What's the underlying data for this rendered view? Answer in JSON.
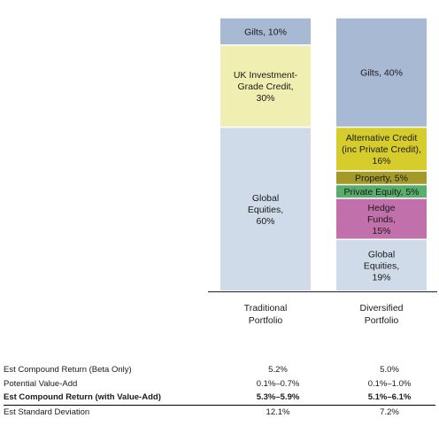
{
  "chart_data": {
    "type": "bar",
    "stacked": true,
    "categories": [
      "Traditional Portfolio",
      "Diversified Portfolio"
    ],
    "category_lines": [
      [
        "Traditional",
        "Portfolio"
      ],
      [
        "Diversified",
        "Portfolio"
      ]
    ],
    "ylim": [
      0,
      100
    ],
    "portfolios": [
      {
        "name": "Traditional Portfolio",
        "segments": [
          {
            "asset": "Global Equities",
            "value": 60,
            "color": "#cfdbe9",
            "lines": [
              "Global",
              "Equities,",
              "60%"
            ]
          },
          {
            "asset": "UK Investment-Grade Credit",
            "value": 30,
            "color": "#f0eeb0",
            "lines": [
              "UK Investment-",
              "Grade Credit,",
              "30%"
            ]
          },
          {
            "asset": "Gilts",
            "value": 10,
            "color": "#a8b9d3",
            "lines": [
              "Gilts, 10%"
            ]
          }
        ]
      },
      {
        "name": "Diversified Portfolio",
        "segments": [
          {
            "asset": "Global Equities",
            "value": 19,
            "color": "#cfdbe9",
            "lines": [
              "Global",
              "Equities,",
              "19%"
            ]
          },
          {
            "asset": "Hedge Funds",
            "value": 15,
            "color": "#c270ac",
            "lines": [
              "Hedge",
              "Funds,",
              "15%"
            ]
          },
          {
            "asset": "Private Equity",
            "value": 5,
            "color": "#5aae6c",
            "lines": [
              "Private Equity, 5%"
            ]
          },
          {
            "asset": "Property",
            "value": 5,
            "color": "#a39a2a",
            "lines": [
              "Property, 5%"
            ]
          },
          {
            "asset": "Alternative Credit (inc Private Credit)",
            "value": 16,
            "color": "#d6cd2d",
            "lines": [
              "Alternative Credit",
              "(inc Private Credit),",
              "16%"
            ]
          },
          {
            "asset": "Gilts",
            "value": 40,
            "color": "#a8b9d3",
            "lines": [
              "Gilts, 40%"
            ]
          }
        ]
      }
    ]
  },
  "stats": {
    "rows": [
      {
        "label": "Est Compound Return (Beta Only)",
        "traditional": "5.2%",
        "diversified": "5.0%",
        "bold": false
      },
      {
        "label": "Potential Value-Add",
        "traditional": "0.1%–0.7%",
        "diversified": "0.1%–1.0%",
        "bold": false
      },
      {
        "label": "Est Compound Return (with Value-Add)",
        "traditional": "5.3%–5.9%",
        "diversified": "5.1%–6.1%",
        "bold": true
      },
      {
        "label": "Est Standard Deviation",
        "traditional": "12.1%",
        "diversified": "7.2%",
        "bold": false
      }
    ]
  }
}
